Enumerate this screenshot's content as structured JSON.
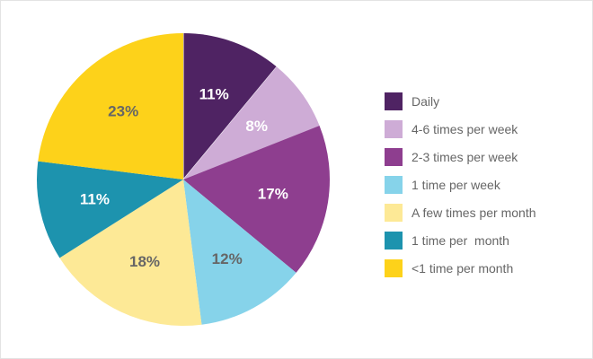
{
  "chart_data": {
    "type": "pie",
    "title": "",
    "start_angle_deg": 0,
    "direction": "clockwise",
    "legend_position": "right",
    "slices": [
      {
        "label": "Daily",
        "value": 11,
        "display": "11%",
        "color": "#4f2363",
        "text_color": "#ffffff"
      },
      {
        "label": "4-6 times per week",
        "value": 8,
        "display": "8%",
        "color": "#ceacd6",
        "text_color": "#ffffff"
      },
      {
        "label": "2-3 times per week",
        "value": 17,
        "display": "17%",
        "color": "#8e3e8f",
        "text_color": "#ffffff"
      },
      {
        "label": "1 time per week",
        "value": 12,
        "display": "12%",
        "color": "#86d3ea",
        "text_color": "#666666"
      },
      {
        "label": "A few times per month",
        "value": 18,
        "display": "18%",
        "color": "#fde996",
        "text_color": "#666666"
      },
      {
        "label": "1 time per  month",
        "value": 11,
        "display": "11%",
        "color": "#1d93ae",
        "text_color": "#ffffff"
      },
      {
        "label": "<1 time per month",
        "value": 23,
        "display": "23%",
        "color": "#fdd21a",
        "text_color": "#666666"
      }
    ]
  }
}
